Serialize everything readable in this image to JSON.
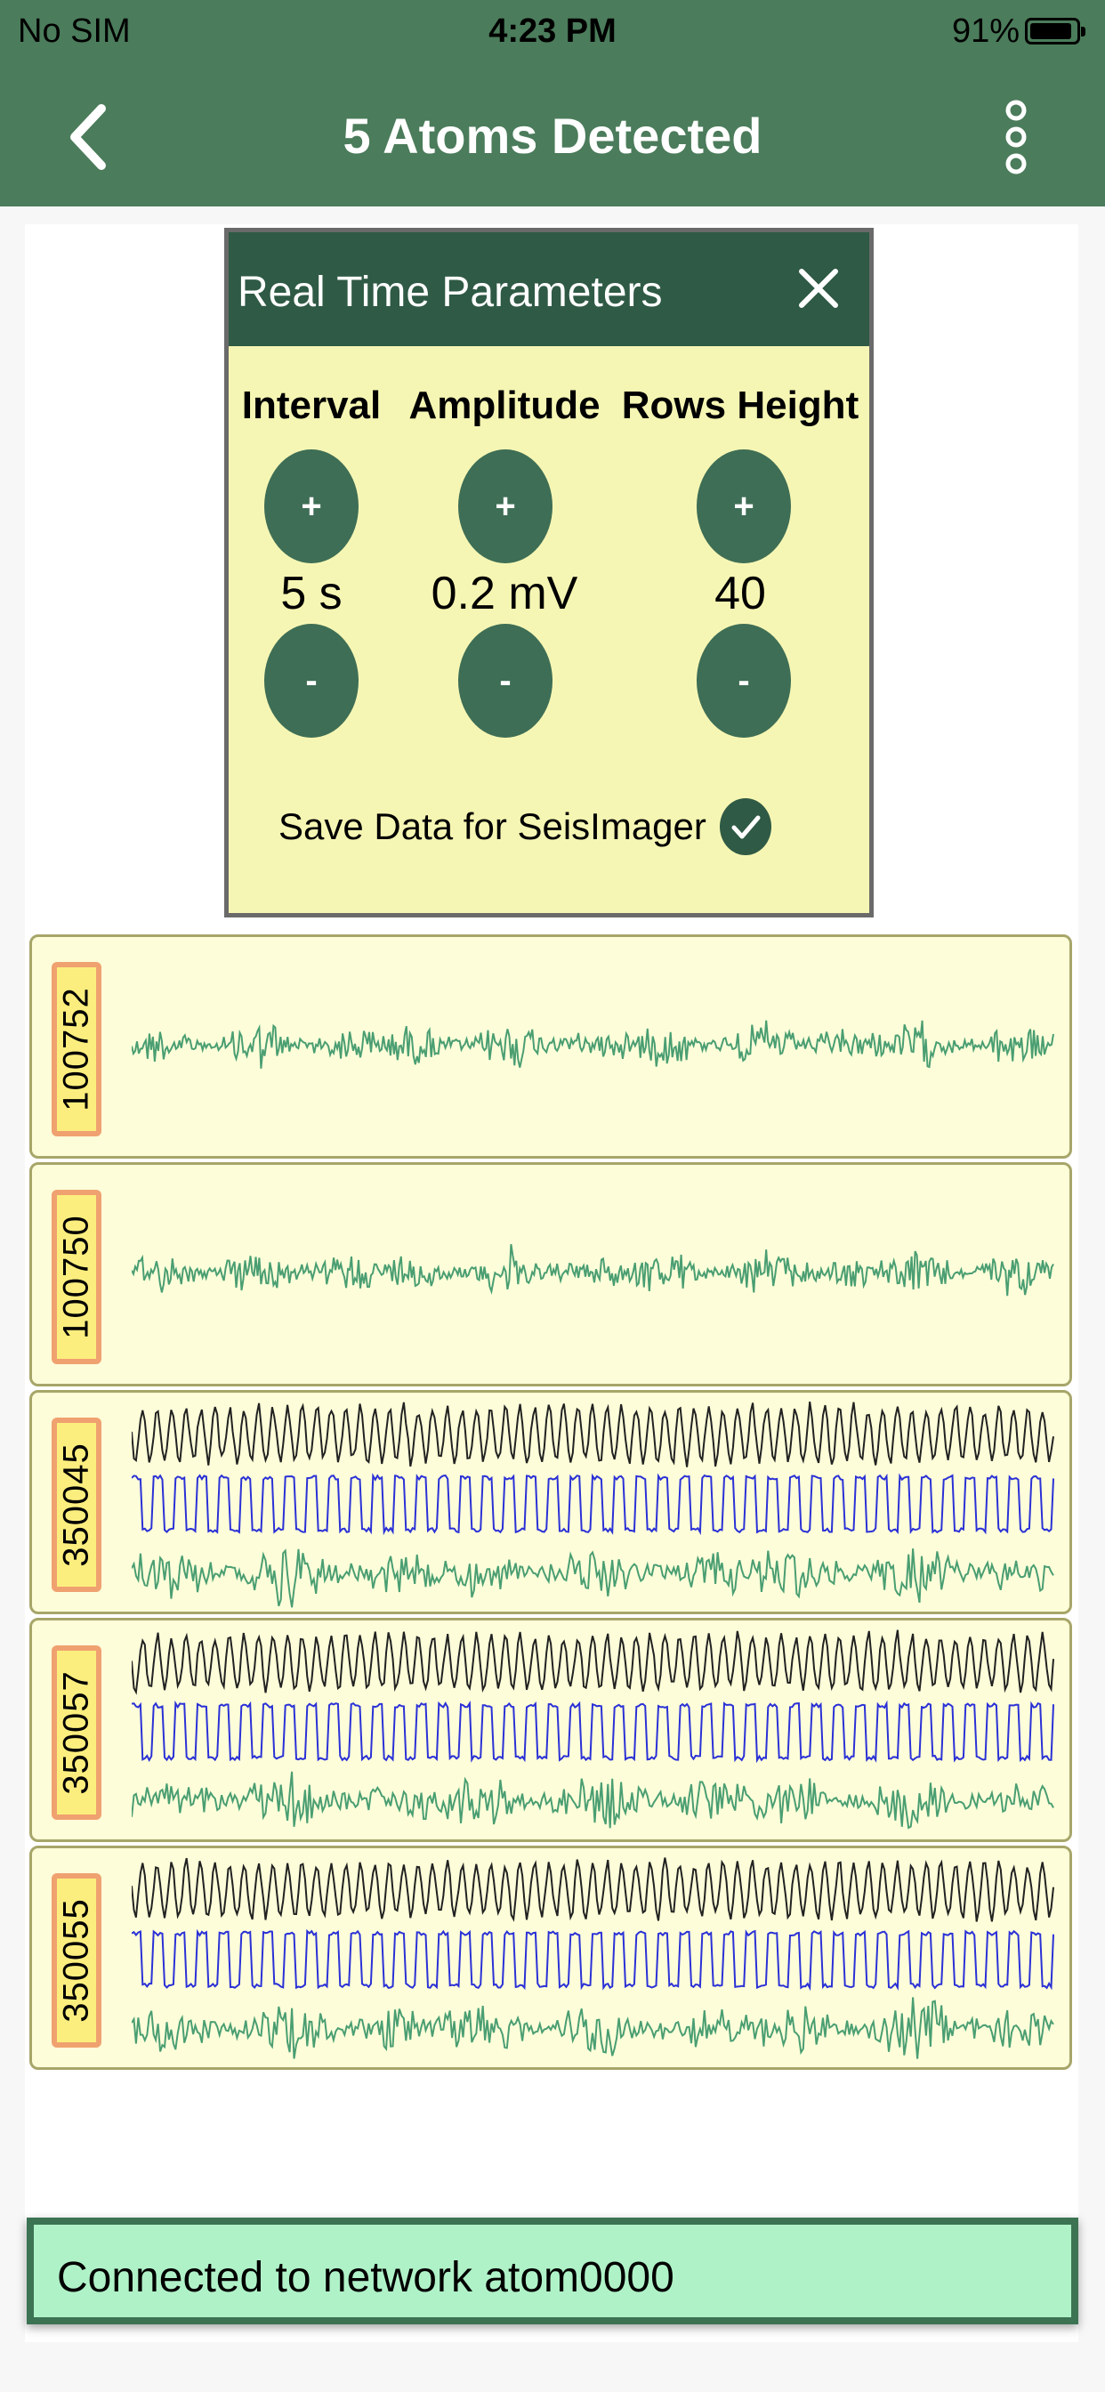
{
  "status_bar": {
    "carrier": "No SIM",
    "time": "4:23 PM",
    "battery": "91%"
  },
  "nav": {
    "title": "5 Atoms Detected",
    "back_icon": "chevron-left-icon",
    "menu_icon": "more-vertical-icon"
  },
  "params": {
    "title": "Real Time Parameters",
    "close_icon": "close-icon",
    "columns": [
      {
        "label": "Interval",
        "value": "5 s",
        "plus": "+",
        "minus": "-"
      },
      {
        "label": "Amplitude",
        "value": "0.2 mV",
        "plus": "+",
        "minus": "-"
      },
      {
        "label": "Rows Height",
        "value": "40",
        "plus": "+",
        "minus": "-"
      }
    ],
    "save_label": "Save Data for SeisImager",
    "save_checked": true
  },
  "traces": [
    {
      "id": "100752",
      "channels": [
        "green"
      ]
    },
    {
      "id": "100750",
      "channels": [
        "green"
      ]
    },
    {
      "id": "350045",
      "channels": [
        "black",
        "blue",
        "green"
      ]
    },
    {
      "id": "350057",
      "channels": [
        "black",
        "blue",
        "green"
      ]
    },
    {
      "id": "350055",
      "channels": [
        "black",
        "blue",
        "green"
      ]
    }
  ],
  "colors": {
    "header": "#4b7c5b",
    "popup_header": "#2f5a45",
    "popup_bg": "#f6f6b4",
    "card_bg": "#fdfed9",
    "trace_green": "#4a9e72",
    "trace_blue": "#2b31d6",
    "trace_black": "#222222",
    "toast_bg": "#b0f2c8"
  },
  "toast": {
    "message": "Connected to network atom0000"
  }
}
